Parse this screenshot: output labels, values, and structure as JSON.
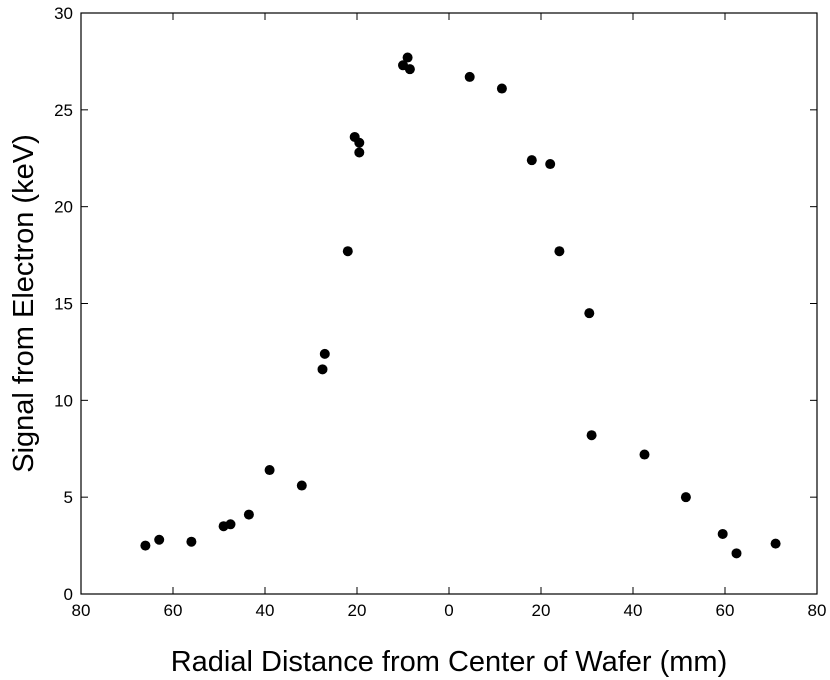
{
  "chart_data": {
    "type": "scatter",
    "title": "",
    "xlabel": "Radial Distance from Center of Wafer (mm)",
    "ylabel": "Signal from Electron (keV)",
    "xlim": [
      -80,
      80
    ],
    "ylim": [
      0,
      30
    ],
    "x_ticks": [
      -80,
      -60,
      -40,
      -20,
      0,
      20,
      40,
      60,
      80
    ],
    "x_tick_labels": [
      "80",
      "60",
      "40",
      "20",
      "0",
      "20",
      "40",
      "60",
      "80"
    ],
    "y_ticks": [
      0,
      5,
      10,
      15,
      20,
      25,
      30
    ],
    "y_tick_labels": [
      "0",
      "5",
      "10",
      "15",
      "20",
      "25",
      "30"
    ],
    "grid": false,
    "marker_color": "#000000",
    "points": [
      {
        "x": -66,
        "y": 2.5
      },
      {
        "x": -63,
        "y": 2.8
      },
      {
        "x": -56,
        "y": 2.7
      },
      {
        "x": -49,
        "y": 3.5
      },
      {
        "x": -47.5,
        "y": 3.6
      },
      {
        "x": -43.5,
        "y": 4.1
      },
      {
        "x": -39,
        "y": 6.4
      },
      {
        "x": -32,
        "y": 5.6
      },
      {
        "x": -27.5,
        "y": 11.6
      },
      {
        "x": -27,
        "y": 12.4
      },
      {
        "x": -22,
        "y": 17.7
      },
      {
        "x": -20.5,
        "y": 23.6
      },
      {
        "x": -19.5,
        "y": 23.3
      },
      {
        "x": -19.5,
        "y": 22.8
      },
      {
        "x": -10,
        "y": 27.3
      },
      {
        "x": -9,
        "y": 27.7
      },
      {
        "x": -8.5,
        "y": 27.1
      },
      {
        "x": 4.5,
        "y": 26.7
      },
      {
        "x": 11.5,
        "y": 26.1
      },
      {
        "x": 18,
        "y": 22.4
      },
      {
        "x": 22,
        "y": 22.2
      },
      {
        "x": 24,
        "y": 17.7
      },
      {
        "x": 30.5,
        "y": 14.5
      },
      {
        "x": 31,
        "y": 8.2
      },
      {
        "x": 42.5,
        "y": 7.2
      },
      {
        "x": 51.5,
        "y": 5.0
      },
      {
        "x": 59.5,
        "y": 3.1
      },
      {
        "x": 62.5,
        "y": 2.1
      },
      {
        "x": 71,
        "y": 2.6
      }
    ]
  }
}
